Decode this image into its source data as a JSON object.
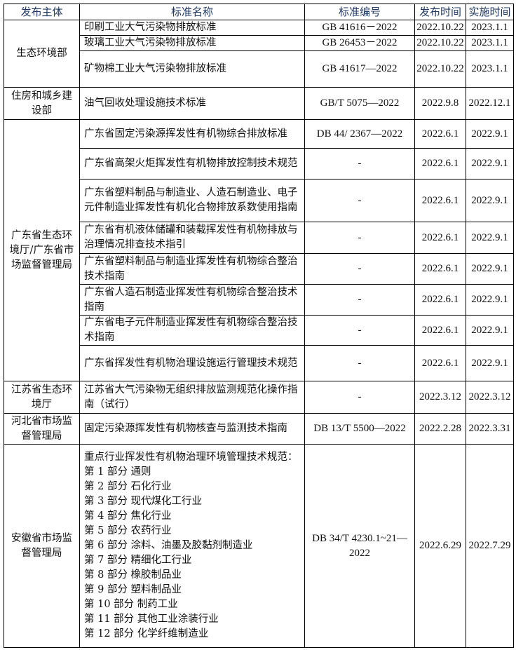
{
  "headers": [
    "发布主体",
    "标准名称",
    "标准编号",
    "发布时间",
    "实施时间"
  ],
  "groups": [
    {
      "agency": "生态环境部",
      "rows": [
        {
          "name": "印刷工业大气污染物排放标准",
          "code": "GB 41616－2022",
          "pub": "2022.10.22",
          "impl": "2023.1.1"
        },
        {
          "name": "玻璃工业大气污染物排放标准",
          "code": "GB 26453－2022",
          "pub": "2022.10.22",
          "impl": "2023.1.1"
        },
        {
          "name": "矿物棉工业大气污染物排放标准",
          "code": "GB 41617—2022",
          "pub": "2022.10.22",
          "impl": "2023.1.1"
        }
      ]
    },
    {
      "agency": "住房和城乡建设部",
      "rows": [
        {
          "name": "油气回收处理设施技术标准",
          "code": "GB/T 5075—2022",
          "pub": "2022.9.8",
          "impl": "2022.12.1"
        }
      ]
    },
    {
      "agency": "广东省生态环境厅/广东省市场监督管理局",
      "rows": [
        {
          "name": "广东省固定污染源挥发性有机物综合排放标准",
          "code": "DB 44/ 2367—2022",
          "pub": "2022.6.1",
          "impl": "2022.9.1"
        },
        {
          "name": "广东省高架火炬挥发性有机物排放控制技术规范",
          "code": "-",
          "pub": "2022.6.1",
          "impl": "2022.9.1"
        },
        {
          "name": "广东省塑料制品与制造业、人造石制造业、电子元件制造业挥发性有机化合物排放系数使用指南",
          "code": "-",
          "pub": "2022.6.1",
          "impl": "2022.9.1"
        },
        {
          "name": "广东省有机液体储罐和装载挥发性有机物排放与治理情况排查技术指引",
          "code": "-",
          "pub": "2022.6.1",
          "impl": "2022.9.1"
        },
        {
          "name": "广东省塑料制品与制造业挥发性有机物综合整治技术指南",
          "code": "-",
          "pub": "2022.6.1",
          "impl": "2022.9.1"
        },
        {
          "name": "广东省人造石制造业挥发性有机物综合整治技术指南",
          "code": "-",
          "pub": "2022.6.1",
          "impl": "2022.9.1"
        },
        {
          "name": "广东省电子元件制造业挥发性有机物综合整治技术指南",
          "code": "-",
          "pub": "2022.6.1",
          "impl": "2022.9.1"
        },
        {
          "name": "广东省挥发性有机物治理设施运行管理技术规范",
          "code": "-",
          "pub": "2022.6.1",
          "impl": "2022.9.1"
        }
      ]
    },
    {
      "agency": "江苏省生态环境厅",
      "rows": [
        {
          "name": "江苏省大气污染物无组织排放监测规范化操作指南（试行）",
          "code": "-",
          "pub": "2022.3.12",
          "impl": "2022.3.12"
        }
      ]
    },
    {
      "agency": "河北省市场监督管理局",
      "rows": [
        {
          "name": "固定污染源挥发性有机物核查与监测技术指南",
          "code": "DB 13/T 5500—2022",
          "pub": "2022.2.28",
          "impl": "2022.3.31"
        }
      ]
    },
    {
      "agency": "安徽省市场监督管理局",
      "rows": [
        {
          "name": "重点行业挥发性有机物治理环境管理技术规范：",
          "parts": [
            "第 1 部分  通则",
            "第 2 部分  石化行业",
            "第 3 部分  现代煤化工行业",
            "第 4 部分  焦化行业",
            "第 5 部分 农药行业",
            "第 6 部分  涂料、油墨及胶黏剂制造业",
            "第 7 部分  精细化工行业",
            "第 8 部分  橡胶制品业",
            "第 9 部分  塑料制品业",
            "第 10 部分  制药工业",
            "第 11 部分  其他工业涂装行业",
            "第 12 部分  化学纤维制造业"
          ],
          "code": "DB 34/T 4230.1~21—2022",
          "pub": "2022.6.29",
          "impl": "2022.7.29"
        }
      ]
    }
  ]
}
